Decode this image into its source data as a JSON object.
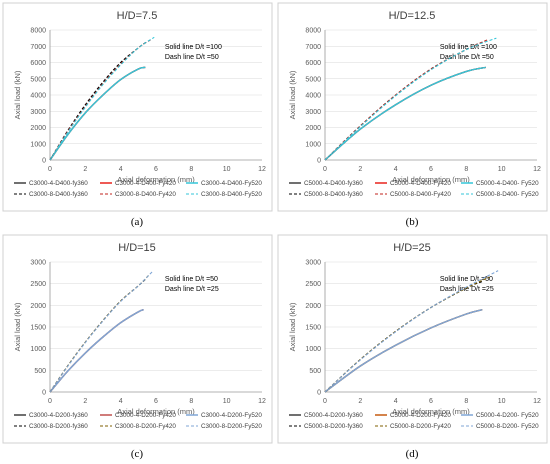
{
  "chart_data": [
    {
      "type": "line",
      "title": "H/D=7.5",
      "xlabel": "Axial deformation (mm)",
      "ylabel": "Axial load (kN)",
      "xlim": [
        0,
        12
      ],
      "ylim": [
        0,
        8000
      ],
      "xticks": [
        0,
        2,
        4,
        6,
        8,
        10,
        12
      ],
      "yticks": [
        0,
        1000,
        2000,
        3000,
        4000,
        5000,
        6000,
        7000,
        8000
      ],
      "annotation": [
        "Solid line D/t =100",
        "Dash line D/t =50"
      ],
      "caption": "(a)",
      "legend": "bottom",
      "series": [
        {
          "name": "C3000-4-D400-fy360",
          "color": "#404040",
          "dash": false,
          "x": [
            0,
            1,
            2,
            3,
            4,
            5,
            5.4
          ],
          "y": [
            0,
            1550,
            2900,
            4000,
            4950,
            5600,
            5700
          ]
        },
        {
          "name": "C3000-4-D400-Fy420",
          "color": "#e8231c",
          "dash": false,
          "x": [
            0,
            1,
            2,
            3,
            4,
            5,
            5.4
          ],
          "y": [
            0,
            1550,
            2900,
            4000,
            4950,
            5600,
            5700
          ]
        },
        {
          "name": "C3000-4-D400-Fy520",
          "color": "#33c6d8",
          "dash": false,
          "x": [
            0,
            1,
            2,
            3,
            4,
            5,
            5.4
          ],
          "y": [
            0,
            1550,
            2900,
            4000,
            4950,
            5600,
            5700
          ]
        },
        {
          "name": "C3000-8-D400-fy360",
          "color": "#000000",
          "dash": true,
          "x": [
            0,
            1,
            2,
            3,
            4,
            5,
            5.5
          ],
          "y": [
            0,
            1800,
            3400,
            4800,
            6000,
            6900,
            7300
          ]
        },
        {
          "name": "C3000-8-D400-Fy420",
          "color": "#c0231c",
          "dash": true,
          "x": [
            0,
            1,
            2,
            3,
            4,
            5,
            5.7
          ],
          "y": [
            0,
            1750,
            3300,
            4700,
            5900,
            6900,
            7400
          ]
        },
        {
          "name": "C3000-8-D400-Fy520",
          "color": "#33c6d8",
          "dash": true,
          "x": [
            0,
            1,
            2,
            3,
            4,
            5,
            5.9
          ],
          "y": [
            0,
            1700,
            3250,
            4650,
            5850,
            6900,
            7550
          ]
        }
      ]
    },
    {
      "type": "line",
      "title": "H/D=12.5",
      "xlabel": "Axial deformation (mm)",
      "ylabel": "Axial load (kN)",
      "xlim": [
        0,
        12
      ],
      "ylim": [
        0,
        8000
      ],
      "xticks": [
        0,
        2,
        4,
        6,
        8,
        10,
        12
      ],
      "yticks": [
        0,
        1000,
        2000,
        3000,
        4000,
        5000,
        6000,
        7000,
        8000
      ],
      "annotation": [
        "Solid line D/t =100",
        "Dash line D/t =50"
      ],
      "caption": "(b)",
      "legend": "bottom",
      "series": [
        {
          "name": "C5000-4-D400-fy360",
          "color": "#404040",
          "dash": false,
          "x": [
            0,
            2,
            4,
            6,
            8,
            9.1
          ],
          "y": [
            0,
            1900,
            3400,
            4600,
            5450,
            5700
          ]
        },
        {
          "name": "C5000-4-D400-Fy420",
          "color": "#e8231c",
          "dash": false,
          "x": [
            0,
            2,
            4,
            6,
            8,
            9.1
          ],
          "y": [
            0,
            1900,
            3400,
            4600,
            5450,
            5700
          ]
        },
        {
          "name": "C5000-4-D400- Fy520",
          "color": "#33c6d8",
          "dash": false,
          "x": [
            0,
            2,
            4,
            6,
            8,
            9.1
          ],
          "y": [
            0,
            1900,
            3400,
            4600,
            5450,
            5700
          ]
        },
        {
          "name": "C5000-8-D400-fy360",
          "color": "#000000",
          "dash": true,
          "x": [
            0,
            2,
            4,
            6,
            8,
            8.8
          ],
          "y": [
            0,
            2100,
            4000,
            5600,
            6800,
            7200
          ]
        },
        {
          "name": "C5000-8-D400-Fy420",
          "color": "#c0231c",
          "dash": true,
          "x": [
            0,
            2,
            4,
            6,
            8,
            9.2
          ],
          "y": [
            0,
            2100,
            4000,
            5600,
            6800,
            7400
          ]
        },
        {
          "name": "C5000-8-D400- Fy520",
          "color": "#33c6d8",
          "dash": true,
          "x": [
            0,
            2,
            4,
            6,
            8,
            9.7
          ],
          "y": [
            0,
            2050,
            3950,
            5550,
            6800,
            7500
          ]
        }
      ]
    },
    {
      "type": "line",
      "title": "H/D=15",
      "xlabel": "Axial deformation (mm)",
      "ylabel": "Axial load (kN)",
      "xlim": [
        0,
        12
      ],
      "ylim": [
        0,
        3000
      ],
      "xticks": [
        0,
        2,
        4,
        6,
        8,
        10,
        12
      ],
      "yticks": [
        0,
        500,
        1000,
        1500,
        2000,
        2500,
        3000
      ],
      "annotation": [
        "Solid line D/t =50",
        "Dash line D/t =25"
      ],
      "caption": "(c)",
      "legend": "bottom",
      "series": [
        {
          "name": "C3000-4-D200-fy360",
          "color": "#404040",
          "dash": false,
          "x": [
            0,
            1,
            2,
            3,
            4,
            5,
            5.3
          ],
          "y": [
            0,
            480,
            900,
            1270,
            1600,
            1850,
            1900
          ]
        },
        {
          "name": "C3000-4-D200-Fy420",
          "color": "#c0504d",
          "dash": false,
          "x": [
            0,
            1,
            2,
            3,
            4,
            5,
            5.3
          ],
          "y": [
            0,
            480,
            900,
            1270,
            1600,
            1850,
            1900
          ]
        },
        {
          "name": "C3000-4-D200-Fy520",
          "color": "#7fa6d6",
          "dash": false,
          "x": [
            0,
            1,
            2,
            3,
            4,
            5,
            5.3
          ],
          "y": [
            0,
            480,
            900,
            1270,
            1600,
            1850,
            1900
          ]
        },
        {
          "name": "C3000-8-D200-fy360",
          "color": "#000000",
          "dash": true,
          "x": [
            0,
            1,
            2,
            3,
            4,
            5,
            5.4
          ],
          "y": [
            0,
            600,
            1150,
            1650,
            2100,
            2450,
            2600
          ]
        },
        {
          "name": "C3000-8-D200-Fy420",
          "color": "#7f5f00",
          "dash": true,
          "x": [
            0,
            1,
            2,
            3,
            4,
            5,
            5.6
          ],
          "y": [
            0,
            600,
            1150,
            1650,
            2100,
            2450,
            2700
          ]
        },
        {
          "name": "C3000-8-D200-Fy520",
          "color": "#7fa6d6",
          "dash": true,
          "x": [
            0,
            1,
            2,
            3,
            4,
            5,
            5.8
          ],
          "y": [
            0,
            590,
            1140,
            1640,
            2090,
            2450,
            2780
          ]
        }
      ]
    },
    {
      "type": "line",
      "title": "H/D=25",
      "xlabel": "Axial deformation (mm)",
      "ylabel": "Axial load (kN)",
      "xlim": [
        0,
        12
      ],
      "ylim": [
        0,
        3000
      ],
      "xticks": [
        0,
        2,
        4,
        6,
        8,
        10,
        12
      ],
      "yticks": [
        0,
        500,
        1000,
        1500,
        2000,
        2500,
        3000
      ],
      "annotation": [
        "Solid line D/t =50",
        "Dash line D/t =25"
      ],
      "caption": "(d)",
      "legend": "bottom",
      "series": [
        {
          "name": "C5000-4-D200-fy360",
          "color": "#404040",
          "dash": false,
          "x": [
            0,
            2,
            4,
            6,
            8,
            8.9
          ],
          "y": [
            0,
            600,
            1080,
            1480,
            1800,
            1900
          ]
        },
        {
          "name": "C5000-4-D200-Fy420",
          "color": "#c55a11",
          "dash": false,
          "x": [
            0,
            2,
            4,
            6,
            8,
            8.9
          ],
          "y": [
            0,
            600,
            1080,
            1480,
            1800,
            1900
          ]
        },
        {
          "name": "C5000-4-D200- Fy520",
          "color": "#7fa6d6",
          "dash": false,
          "x": [
            0,
            2,
            4,
            6,
            8,
            8.9
          ],
          "y": [
            0,
            600,
            1080,
            1480,
            1800,
            1900
          ]
        },
        {
          "name": "C5000-8-D200-fy360",
          "color": "#000000",
          "dash": true,
          "x": [
            0,
            2,
            4,
            6,
            8,
            8.9
          ],
          "y": [
            0,
            750,
            1400,
            1950,
            2400,
            2550
          ]
        },
        {
          "name": "C5000-8-D200-Fy420",
          "color": "#7f5f00",
          "dash": true,
          "x": [
            0,
            2,
            4,
            6,
            8,
            9.3
          ],
          "y": [
            0,
            750,
            1400,
            1950,
            2400,
            2650
          ]
        },
        {
          "name": "C5000-8-D200- Fy520",
          "color": "#7fa6d6",
          "dash": true,
          "x": [
            0,
            2,
            4,
            6,
            8,
            9.8
          ],
          "y": [
            0,
            740,
            1390,
            1950,
            2420,
            2800
          ]
        }
      ]
    }
  ]
}
